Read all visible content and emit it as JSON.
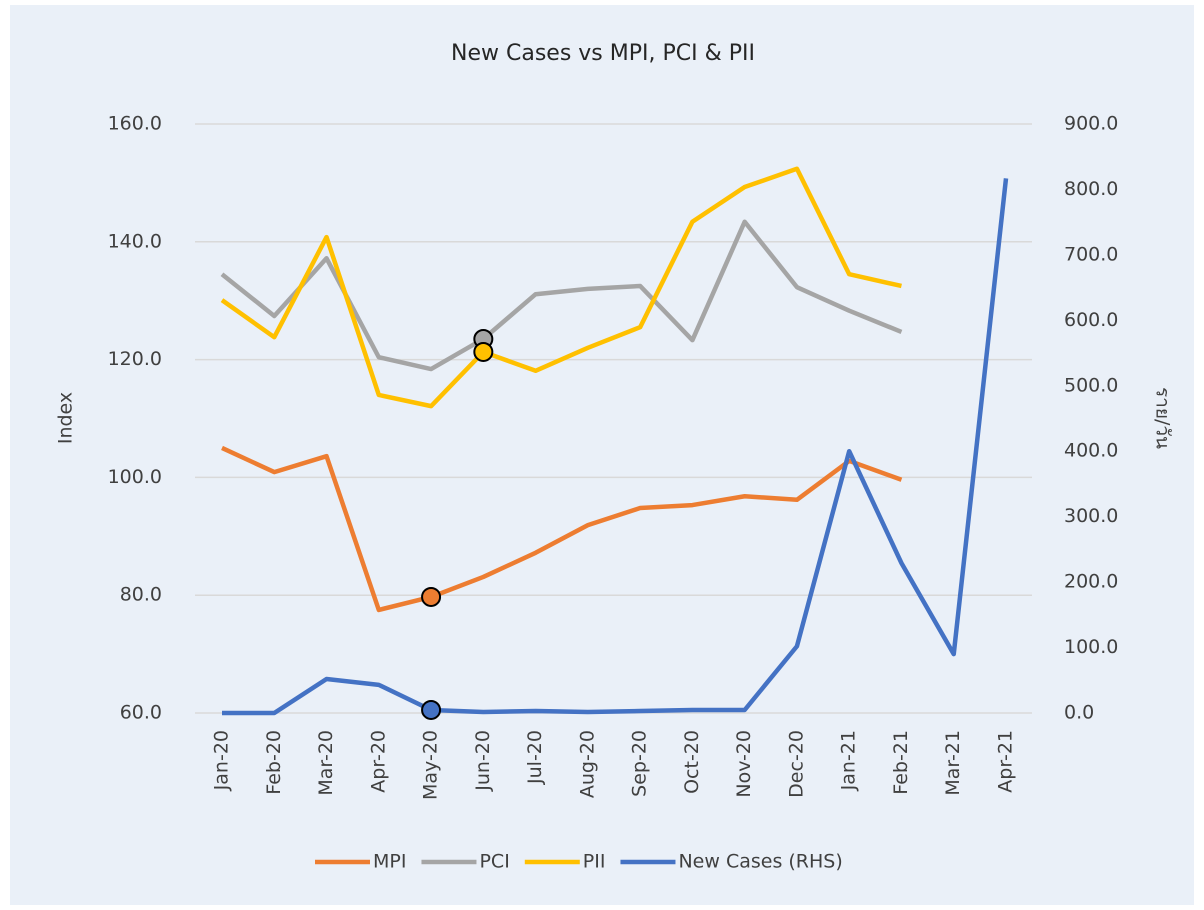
{
  "chart_data": {
    "type": "line",
    "title": "New Cases vs MPI, PCI & PII",
    "ylabel": "Index",
    "y2label": "ราย/วัน",
    "categories": [
      "Jan-20",
      "Feb-20",
      "Mar-20",
      "Apr-20",
      "May-20",
      "Jun-20",
      "Jul-20",
      "Aug-20",
      "Sep-20",
      "Oct-20",
      "Nov-20",
      "Dec-20",
      "Jan-21",
      "Feb-21",
      "Mar-21",
      "Apr-21"
    ],
    "series": [
      {
        "name": "MPI",
        "color": "#ed7d31",
        "marker_index": 4,
        "values": [
          105.0,
          100.9,
          103.6,
          77.5,
          79.7,
          83.1,
          87.2,
          91.9,
          94.8,
          95.3,
          96.8,
          96.2,
          102.8,
          99.6,
          null,
          null
        ]
      },
      {
        "name": "PCI",
        "color": "#a5a5a5",
        "marker_index": 5,
        "values": [
          134.5,
          127.4,
          137.2,
          120.4,
          118.4,
          123.5,
          131.1,
          132.0,
          132.5,
          123.3,
          143.4,
          132.3,
          128.3,
          124.7,
          null,
          null
        ]
      },
      {
        "name": "PII",
        "color": "#ffc000",
        "marker_index": 5,
        "values": [
          130.1,
          123.8,
          140.8,
          114.0,
          112.1,
          121.3,
          118.1,
          122.0,
          125.5,
          143.4,
          149.3,
          152.4,
          134.5,
          132.5,
          null,
          null
        ]
      },
      {
        "name": "New Cases (RHS)",
        "color": "#4472c4",
        "axis": "y2",
        "marker_index": 4,
        "values": [
          0,
          0,
          52,
          43,
          4.6,
          1.5,
          3,
          1.5,
          3,
          4.6,
          4.6,
          102,
          400,
          229,
          90,
          817
        ]
      }
    ],
    "ylim": [
      60,
      160
    ],
    "yticks": [
      {
        "value": 60,
        "label": "60.0"
      },
      {
        "value": 80,
        "label": "80.0"
      },
      {
        "value": 100,
        "label": "100.0"
      },
      {
        "value": 120,
        "label": "120.0"
      },
      {
        "value": 140,
        "label": "140.0"
      },
      {
        "value": 160,
        "label": "160.0"
      }
    ],
    "y2lim": [
      0,
      900
    ],
    "y2ticks": [
      {
        "value": 0,
        "label": "0.0"
      },
      {
        "value": 100,
        "label": "100.0"
      },
      {
        "value": 200,
        "label": "200.0"
      },
      {
        "value": 300,
        "label": "300.0"
      },
      {
        "value": 400,
        "label": "400.0"
      },
      {
        "value": 500,
        "label": "500.0"
      },
      {
        "value": 600,
        "label": "600.0"
      },
      {
        "value": 700,
        "label": "700.0"
      },
      {
        "value": 800,
        "label": "800.0"
      },
      {
        "value": 900,
        "label": "900.0"
      }
    ],
    "grid": true,
    "legend": "bottom"
  }
}
